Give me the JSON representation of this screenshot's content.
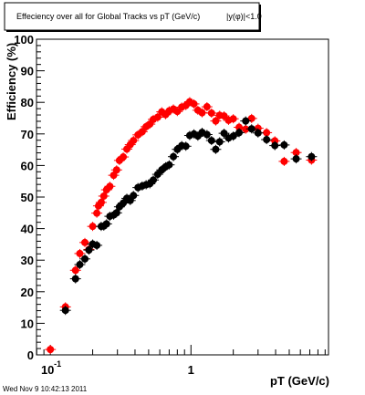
{
  "chart_data": {
    "type": "scatter",
    "title": "Effeciency over all for Global Tracks vs pT (GeV/c)",
    "title_suffix": "|y(φ)|<1.0",
    "xlabel": "pT (GeV/c)",
    "ylabel": "Efficiency (%)",
    "xscale": "log",
    "xlim": [
      0.0797,
      9.51
    ],
    "ylim": [
      0,
      100
    ],
    "yticks": [
      0,
      10,
      20,
      30,
      40,
      50,
      60,
      70,
      80,
      90,
      100
    ],
    "xticks": [
      {
        "value": 0.1,
        "label": "10",
        "exp": "-1"
      },
      {
        "value": 1,
        "label": "1",
        "exp": ""
      }
    ],
    "grid": false,
    "timestamp": "Wed Nov  9 10:42:13 2011",
    "series": [
      {
        "color": "#ff0000",
        "points": [
          [
            0.1,
            1.7
          ],
          [
            0.128,
            15.2
          ],
          [
            0.151,
            26.8
          ],
          [
            0.162,
            32.1
          ],
          [
            0.176,
            35.6
          ],
          [
            0.188,
            33.4
          ],
          [
            0.2,
            40.7
          ],
          [
            0.214,
            44.9
          ],
          [
            0.22,
            47.2
          ],
          [
            0.23,
            48.3
          ],
          [
            0.24,
            50.3
          ],
          [
            0.251,
            52.3
          ],
          [
            0.265,
            53.4
          ],
          [
            0.282,
            56.9
          ],
          [
            0.296,
            58.6
          ],
          [
            0.31,
            61.6
          ],
          [
            0.33,
            62.7
          ],
          [
            0.35,
            65.2
          ],
          [
            0.37,
            66.6
          ],
          [
            0.39,
            67.9
          ],
          [
            0.42,
            69.7
          ],
          [
            0.45,
            70.7
          ],
          [
            0.48,
            72.3
          ],
          [
            0.51,
            73.1
          ],
          [
            0.54,
            74.6
          ],
          [
            0.58,
            75.3
          ],
          [
            0.62,
            77.0
          ],
          [
            0.66,
            76.1
          ],
          [
            0.7,
            77.3
          ],
          [
            0.75,
            77.9
          ],
          [
            0.8,
            77.1
          ],
          [
            0.86,
            78.5
          ],
          [
            0.92,
            79.0
          ],
          [
            0.98,
            80.2
          ],
          [
            1.05,
            79.5
          ],
          [
            1.12,
            77.5
          ],
          [
            1.2,
            76.7
          ],
          [
            1.3,
            78.6
          ],
          [
            1.4,
            76.6
          ],
          [
            1.5,
            74.1
          ],
          [
            1.6,
            75.9
          ],
          [
            1.72,
            75.7
          ],
          [
            1.85,
            74.3
          ],
          [
            2.0,
            74.8
          ],
          [
            2.2,
            72.1
          ],
          [
            2.45,
            71.5
          ],
          [
            2.7,
            74.9
          ],
          [
            3.0,
            71.8
          ],
          [
            3.45,
            70.4
          ],
          [
            3.95,
            67.8
          ],
          [
            4.6,
            61.3
          ],
          [
            5.6,
            64.1
          ],
          [
            7.2,
            61.7
          ]
        ]
      },
      {
        "color": "#000000",
        "points": [
          [
            0.128,
            14.1
          ],
          [
            0.151,
            24.1
          ],
          [
            0.162,
            28.6
          ],
          [
            0.176,
            30.4
          ],
          [
            0.188,
            33.2
          ],
          [
            0.2,
            35.1
          ],
          [
            0.214,
            34.7
          ],
          [
            0.23,
            40.7
          ],
          [
            0.24,
            40.8
          ],
          [
            0.251,
            41.5
          ],
          [
            0.265,
            43.9
          ],
          [
            0.282,
            44.3
          ],
          [
            0.296,
            45.0
          ],
          [
            0.31,
            46.9
          ],
          [
            0.33,
            48.1
          ],
          [
            0.35,
            49.6
          ],
          [
            0.37,
            48.9
          ],
          [
            0.39,
            50.5
          ],
          [
            0.42,
            53.0
          ],
          [
            0.45,
            53.5
          ],
          [
            0.48,
            53.9
          ],
          [
            0.51,
            54.2
          ],
          [
            0.54,
            55.4
          ],
          [
            0.58,
            57.2
          ],
          [
            0.62,
            58.6
          ],
          [
            0.66,
            59.6
          ],
          [
            0.7,
            60.2
          ],
          [
            0.75,
            62.8
          ],
          [
            0.8,
            65.1
          ],
          [
            0.86,
            66.3
          ],
          [
            0.92,
            66.1
          ],
          [
            0.98,
            69.5
          ],
          [
            1.05,
            70.0
          ],
          [
            1.12,
            69.3
          ],
          [
            1.2,
            70.5
          ],
          [
            1.3,
            69.8
          ],
          [
            1.4,
            67.9
          ],
          [
            1.5,
            65.1
          ],
          [
            1.6,
            67.5
          ],
          [
            1.72,
            70.2
          ],
          [
            1.85,
            68.7
          ],
          [
            2.0,
            69.3
          ],
          [
            2.2,
            70.4
          ],
          [
            2.45,
            74.1
          ],
          [
            2.7,
            71.6
          ],
          [
            3.0,
            70.3
          ],
          [
            3.45,
            68.2
          ],
          [
            3.95,
            66.3
          ],
          [
            4.6,
            66.5
          ],
          [
            5.6,
            62.1
          ],
          [
            7.2,
            62.8
          ]
        ]
      }
    ]
  }
}
